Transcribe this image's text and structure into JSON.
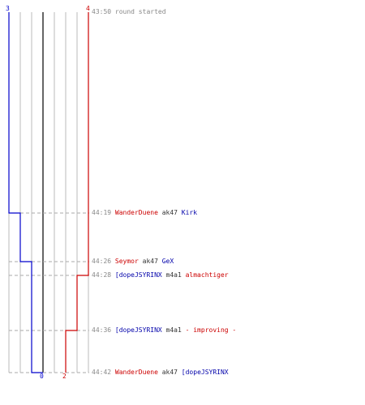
{
  "colors": {
    "team_left": "#0000cc",
    "team_right": "#cc0000",
    "grid": "#bbbbbb",
    "center": "#666666",
    "dash": "#aaaaaa"
  },
  "scores": {
    "top_left": "3",
    "top_right": "4",
    "bottom_left": "0",
    "bottom_right": "2"
  },
  "chart_data": {
    "type": "line",
    "description_free": true,
    "series": [
      {
        "color": "#0000cc",
        "values_alive": [
          3,
          2,
          1,
          0
        ]
      },
      {
        "color": "#cc0000",
        "values_alive": [
          4,
          3,
          2
        ]
      }
    ]
  },
  "events": [
    {
      "time": "43:50",
      "parts": [
        {
          "text": "round started",
          "cls": "gray"
        }
      ]
    },
    {
      "time": "44:19",
      "parts": [
        {
          "text": "WanderDuene",
          "cls": "red"
        },
        {
          "text": " ak47 ",
          "cls": "dark"
        },
        {
          "text": "Kirk",
          "cls": "blue"
        }
      ]
    },
    {
      "time": "44:26",
      "parts": [
        {
          "text": "Seymor",
          "cls": "red"
        },
        {
          "text": " ak47 ",
          "cls": "dark"
        },
        {
          "text": "GeX",
          "cls": "blue"
        }
      ]
    },
    {
      "time": "44:28",
      "parts": [
        {
          "text": "[dopeJSYRINX",
          "cls": "blue"
        },
        {
          "text": " m4a1 ",
          "cls": "dark"
        },
        {
          "text": "almachtiger",
          "cls": "red"
        }
      ]
    },
    {
      "time": "44:36",
      "parts": [
        {
          "text": "[dopeJSYRINX",
          "cls": "blue"
        },
        {
          "text": " m4a1 ",
          "cls": "dark"
        },
        {
          "text": "- improving -",
          "cls": "red"
        }
      ]
    },
    {
      "time": "44:42",
      "parts": [
        {
          "text": "WanderDuene",
          "cls": "red"
        },
        {
          "text": " ak47 ",
          "cls": "dark"
        },
        {
          "text": "[dopeJSYRINX",
          "cls": "blue"
        }
      ]
    }
  ]
}
